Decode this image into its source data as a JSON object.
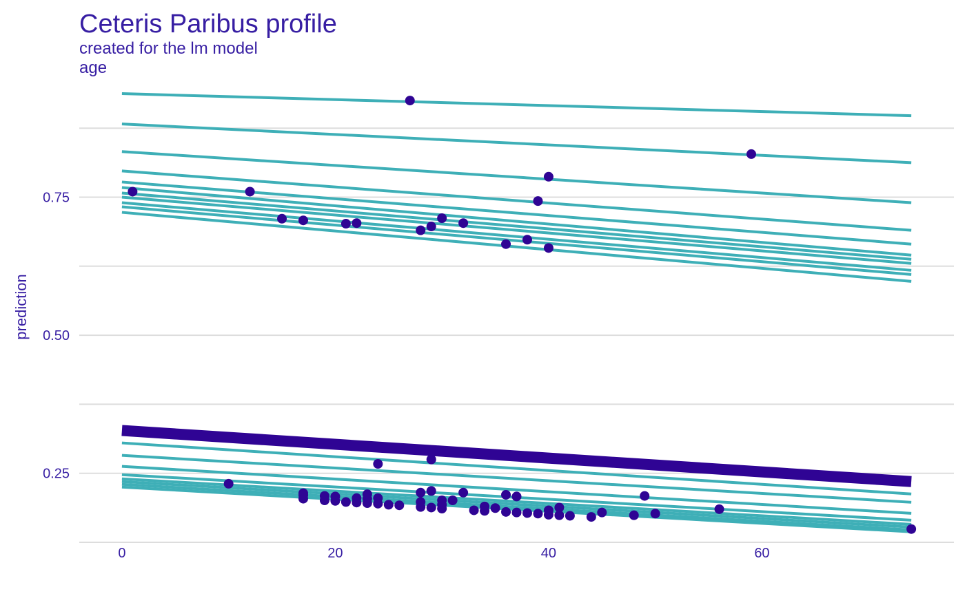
{
  "title": "Ceteris Paribus profile",
  "subtitle": "created for the lm model",
  "facet_label": "age",
  "colors": {
    "text": "#371ea3",
    "grid": "#dddddd",
    "profile_line": "#3eafb7",
    "highlight_line": "#2f0494",
    "point": "#2f0494"
  },
  "chart_data": {
    "type": "line",
    "xlabel": "",
    "ylabel": "prediction",
    "xlim": [
      -4,
      78
    ],
    "ylim": [
      0.12,
      0.96
    ],
    "x_ticks": [
      0,
      20,
      40,
      60
    ],
    "x_tick_labels": [
      "0",
      "20",
      "40",
      "60"
    ],
    "y_ticks": [
      0.25,
      0.5,
      0.75
    ],
    "y_tick_labels": [
      "0.25",
      "0.50",
      "0.75"
    ],
    "grid": true,
    "legend": "none",
    "profile_x_range": [
      0,
      74
    ],
    "profiles": [
      {
        "y_start": 0.9375,
        "y_end": 0.8975
      },
      {
        "y_start": 0.8825,
        "y_end": 0.8125
      },
      {
        "y_start": 0.8325,
        "y_end": 0.74
      },
      {
        "y_start": 0.7975,
        "y_end": 0.69
      },
      {
        "y_start": 0.7775,
        "y_end": 0.665
      },
      {
        "y_start": 0.7675,
        "y_end": 0.645
      },
      {
        "y_start": 0.7575,
        "y_end": 0.6375
      },
      {
        "y_start": 0.75,
        "y_end": 0.63
      },
      {
        "y_start": 0.74,
        "y_end": 0.6175
      },
      {
        "y_start": 0.7325,
        "y_end": 0.61
      },
      {
        "y_start": 0.7225,
        "y_end": 0.5975
      },
      {
        "y_start": 0.305,
        "y_end": 0.2125
      },
      {
        "y_start": 0.2825,
        "y_end": 0.1975
      },
      {
        "y_start": 0.2625,
        "y_end": 0.1775
      },
      {
        "y_start": 0.2475,
        "y_end": 0.165
      },
      {
        "y_start": 0.24,
        "y_end": 0.1575
      },
      {
        "y_start": 0.235,
        "y_end": 0.1525
      },
      {
        "y_start": 0.23,
        "y_end": 0.1475
      },
      {
        "y_start": 0.225,
        "y_end": 0.144
      }
    ],
    "aggregated_profile": {
      "y_start": 0.3275,
      "y_end": 0.235
    },
    "observations": [
      {
        "x": 1,
        "y": 0.76
      },
      {
        "x": 12,
        "y": 0.76
      },
      {
        "x": 15,
        "y": 0.711
      },
      {
        "x": 17,
        "y": 0.708
      },
      {
        "x": 21,
        "y": 0.702
      },
      {
        "x": 22,
        "y": 0.703
      },
      {
        "x": 27,
        "y": 0.925
      },
      {
        "x": 28,
        "y": 0.69
      },
      {
        "x": 29,
        "y": 0.697
      },
      {
        "x": 30,
        "y": 0.712
      },
      {
        "x": 32,
        "y": 0.703
      },
      {
        "x": 36,
        "y": 0.665
      },
      {
        "x": 38,
        "y": 0.673
      },
      {
        "x": 39,
        "y": 0.743
      },
      {
        "x": 40,
        "y": 0.787
      },
      {
        "x": 40,
        "y": 0.658
      },
      {
        "x": 59,
        "y": 0.828
      },
      {
        "x": 10,
        "y": 0.231
      },
      {
        "x": 17,
        "y": 0.214
      },
      {
        "x": 17,
        "y": 0.21
      },
      {
        "x": 17,
        "y": 0.204
      },
      {
        "x": 19,
        "y": 0.209
      },
      {
        "x": 19,
        "y": 0.201
      },
      {
        "x": 20,
        "y": 0.208
      },
      {
        "x": 20,
        "y": 0.2
      },
      {
        "x": 21,
        "y": 0.198
      },
      {
        "x": 22,
        "y": 0.205
      },
      {
        "x": 22,
        "y": 0.197
      },
      {
        "x": 23,
        "y": 0.212
      },
      {
        "x": 23,
        "y": 0.204
      },
      {
        "x": 23,
        "y": 0.196
      },
      {
        "x": 24,
        "y": 0.267
      },
      {
        "x": 24,
        "y": 0.205
      },
      {
        "x": 24,
        "y": 0.195
      },
      {
        "x": 25,
        "y": 0.193
      },
      {
        "x": 26,
        "y": 0.192
      },
      {
        "x": 28,
        "y": 0.215
      },
      {
        "x": 28,
        "y": 0.198
      },
      {
        "x": 28,
        "y": 0.189
      },
      {
        "x": 29,
        "y": 0.275
      },
      {
        "x": 29,
        "y": 0.218
      },
      {
        "x": 29,
        "y": 0.188
      },
      {
        "x": 30,
        "y": 0.201
      },
      {
        "x": 30,
        "y": 0.193
      },
      {
        "x": 30,
        "y": 0.186
      },
      {
        "x": 31,
        "y": 0.201
      },
      {
        "x": 32,
        "y": 0.215
      },
      {
        "x": 33,
        "y": 0.183
      },
      {
        "x": 34,
        "y": 0.19
      },
      {
        "x": 34,
        "y": 0.182
      },
      {
        "x": 35,
        "y": 0.187
      },
      {
        "x": 36,
        "y": 0.211
      },
      {
        "x": 36,
        "y": 0.18
      },
      {
        "x": 37,
        "y": 0.208
      },
      {
        "x": 37,
        "y": 0.179
      },
      {
        "x": 38,
        "y": 0.178
      },
      {
        "x": 39,
        "y": 0.177
      },
      {
        "x": 40,
        "y": 0.183
      },
      {
        "x": 40,
        "y": 0.175
      },
      {
        "x": 41,
        "y": 0.188
      },
      {
        "x": 41,
        "y": 0.174
      },
      {
        "x": 42,
        "y": 0.173
      },
      {
        "x": 44,
        "y": 0.171
      },
      {
        "x": 45,
        "y": 0.179
      },
      {
        "x": 48,
        "y": 0.174
      },
      {
        "x": 49,
        "y": 0.209
      },
      {
        "x": 50,
        "y": 0.177
      },
      {
        "x": 56,
        "y": 0.185
      },
      {
        "x": 74,
        "y": 0.149
      }
    ]
  }
}
